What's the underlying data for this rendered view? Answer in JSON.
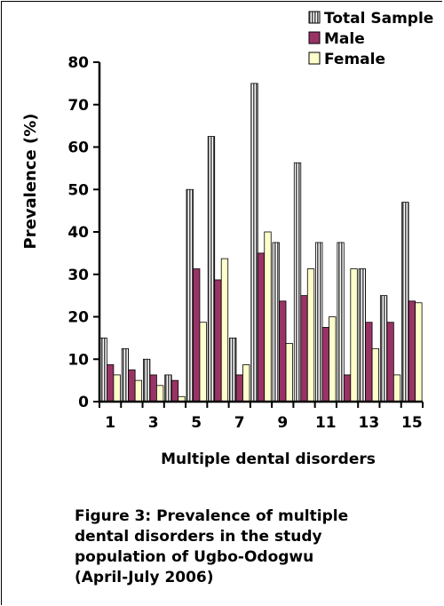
{
  "chart_data": {
    "type": "bar",
    "categories": [
      "1",
      "2",
      "3",
      "4",
      "5",
      "6",
      "7",
      "8",
      "9",
      "10",
      "11",
      "12",
      "13",
      "14",
      "15"
    ],
    "tick_labels": [
      "1",
      "3",
      "5",
      "7",
      "9",
      "11",
      "13",
      "15"
    ],
    "series": [
      {
        "name": "Total Sample",
        "color": "#808080",
        "pattern": "hatched-grey",
        "values": [
          15,
          12.5,
          10,
          6.3,
          50,
          62.5,
          15,
          75,
          37.5,
          56.3,
          37.5,
          37.5,
          31.3,
          25,
          47
        ]
      },
      {
        "name": "Male",
        "color": "#993366",
        "values": [
          8.7,
          7.5,
          6.3,
          5,
          31.3,
          28.7,
          6.3,
          35,
          23.7,
          25,
          17.5,
          6.3,
          18.7,
          18.7,
          23.7
        ]
      },
      {
        "name": "Female",
        "color": "#ffffcc",
        "values": [
          6.3,
          5,
          3.8,
          1.2,
          18.7,
          33.7,
          8.7,
          40,
          13.7,
          31.3,
          20,
          31.3,
          12.5,
          6.3,
          23.3
        ]
      }
    ],
    "title": "",
    "xlabel": "Multiple dental disorders",
    "ylabel": "Prevalence (%)",
    "ylim": [
      0,
      80
    ],
    "yticks": [
      0,
      10,
      20,
      30,
      40,
      50,
      60,
      70,
      80
    ],
    "legend_position": "top-right",
    "grid": false
  },
  "caption": {
    "lines": [
      "Figure 3: Prevalence of multiple",
      "dental disorders in the study",
      "population of Ugbo-Odogwu",
      "(April-July 2006)"
    ]
  }
}
